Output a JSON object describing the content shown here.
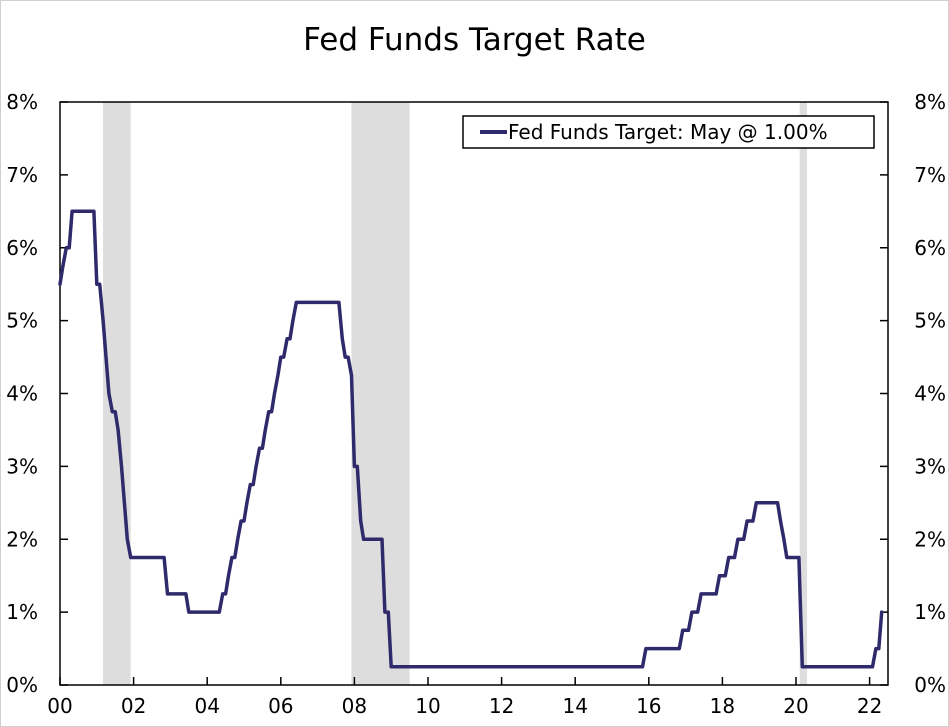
{
  "colors": {
    "line": "#2e2a6b",
    "recession": "#dddddd",
    "axis": "#000000",
    "background": "#ffffff"
  },
  "chart_data": {
    "type": "line",
    "title": "Fed Funds Target Rate",
    "xlabel": "",
    "ylabel": "",
    "xlim": [
      2000.0,
      2022.5
    ],
    "ylim": [
      0,
      8
    ],
    "x_ticks": [
      {
        "value": 2000,
        "label": "00"
      },
      {
        "value": 2002,
        "label": "02"
      },
      {
        "value": 2004,
        "label": "04"
      },
      {
        "value": 2006,
        "label": "06"
      },
      {
        "value": 2008,
        "label": "08"
      },
      {
        "value": 2010,
        "label": "10"
      },
      {
        "value": 2012,
        "label": "12"
      },
      {
        "value": 2014,
        "label": "14"
      },
      {
        "value": 2016,
        "label": "16"
      },
      {
        "value": 2018,
        "label": "18"
      },
      {
        "value": 2020,
        "label": "20"
      },
      {
        "value": 2022,
        "label": "22"
      }
    ],
    "y_ticks": [
      {
        "value": 0,
        "label": "0%"
      },
      {
        "value": 1,
        "label": "1%"
      },
      {
        "value": 2,
        "label": "2%"
      },
      {
        "value": 3,
        "label": "3%"
      },
      {
        "value": 4,
        "label": "4%"
      },
      {
        "value": 5,
        "label": "5%"
      },
      {
        "value": 6,
        "label": "6%"
      },
      {
        "value": 7,
        "label": "7%"
      },
      {
        "value": 8,
        "label": "8%"
      }
    ],
    "legend": {
      "position": "top-right",
      "label": "Fed Funds Target: May @ 1.00%"
    },
    "recessions": [
      {
        "start": 2001.17,
        "end": 2001.92
      },
      {
        "start": 2007.92,
        "end": 2009.5
      },
      {
        "start": 2020.1,
        "end": 2020.3
      }
    ],
    "series": [
      {
        "name": "Fed Funds Target",
        "x": [
          2000.0,
          2000.08,
          2000.17,
          2000.25,
          2000.33,
          2000.42,
          2000.5,
          2000.58,
          2000.67,
          2000.75,
          2000.83,
          2000.92,
          2001.0,
          2001.08,
          2001.17,
          2001.25,
          2001.33,
          2001.42,
          2001.5,
          2001.58,
          2001.67,
          2001.75,
          2001.83,
          2001.92,
          2002.0,
          2002.83,
          2002.92,
          2003.42,
          2003.5,
          2004.33,
          2004.42,
          2004.5,
          2004.58,
          2004.67,
          2004.75,
          2004.83,
          2004.92,
          2005.0,
          2005.08,
          2005.17,
          2005.25,
          2005.33,
          2005.42,
          2005.5,
          2005.58,
          2005.67,
          2005.75,
          2005.83,
          2005.92,
          2006.0,
          2006.08,
          2006.17,
          2006.25,
          2006.33,
          2006.42,
          2006.5,
          2007.58,
          2007.67,
          2007.75,
          2007.83,
          2007.92,
          2008.0,
          2008.08,
          2008.17,
          2008.25,
          2008.33,
          2008.42,
          2008.5,
          2008.75,
          2008.83,
          2008.92,
          2009.0,
          2015.83,
          2015.92,
          2016.83,
          2016.92,
          2017.08,
          2017.17,
          2017.33,
          2017.42,
          2017.83,
          2017.92,
          2018.08,
          2018.17,
          2018.33,
          2018.42,
          2018.58,
          2018.67,
          2018.83,
          2018.92,
          2019.5,
          2019.58,
          2019.67,
          2019.75,
          2019.83,
          2019.92,
          2020.08,
          2020.17,
          2020.25,
          2022.08,
          2022.17,
          2022.25,
          2022.33
        ],
        "values": [
          5.5,
          5.75,
          6.0,
          6.0,
          6.5,
          6.5,
          6.5,
          6.5,
          6.5,
          6.5,
          6.5,
          6.5,
          5.5,
          5.5,
          5.0,
          4.5,
          4.0,
          3.75,
          3.75,
          3.5,
          3.0,
          2.5,
          2.0,
          1.75,
          1.75,
          1.75,
          1.25,
          1.25,
          1.0,
          1.0,
          1.25,
          1.25,
          1.5,
          1.75,
          1.75,
          2.0,
          2.25,
          2.25,
          2.5,
          2.75,
          2.75,
          3.0,
          3.25,
          3.25,
          3.5,
          3.75,
          3.75,
          4.0,
          4.25,
          4.5,
          4.5,
          4.75,
          4.75,
          5.0,
          5.25,
          5.25,
          5.25,
          4.75,
          4.5,
          4.5,
          4.25,
          3.0,
          3.0,
          2.25,
          2.0,
          2.0,
          2.0,
          2.0,
          2.0,
          1.0,
          1.0,
          0.25,
          0.25,
          0.5,
          0.5,
          0.75,
          0.75,
          1.0,
          1.0,
          1.25,
          1.25,
          1.5,
          1.5,
          1.75,
          1.75,
          2.0,
          2.0,
          2.25,
          2.25,
          2.5,
          2.5,
          2.25,
          2.0,
          1.75,
          1.75,
          1.75,
          1.75,
          0.25,
          0.25,
          0.25,
          0.5,
          0.5,
          1.0
        ]
      }
    ]
  }
}
